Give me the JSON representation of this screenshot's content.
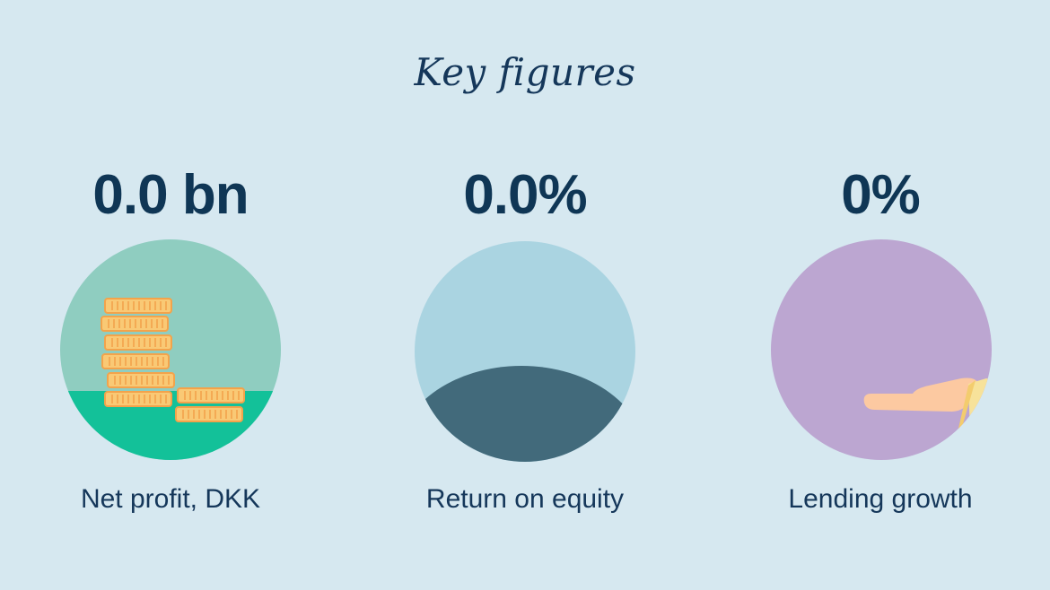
{
  "title": "Key figures",
  "figures": [
    {
      "value": "0.0 bn",
      "label": "Net profit, DKK",
      "icon": "coins-icon"
    },
    {
      "value": "0.0%",
      "label": "Return on equity",
      "icon": "bowl-icon"
    },
    {
      "value": "0%",
      "label": "Lending growth",
      "icon": "hand-icon"
    }
  ],
  "colors": {
    "background": "#d6e8f0",
    "text": "#0f3655",
    "coin_circle_top": "#8fcdc0",
    "coin_circle_bottom": "#13c199",
    "coin": "#f9c975",
    "equity_circle_top": "#aad4e1",
    "equity_circle_bottom": "#426a7b",
    "lending_circle": "#bca6d1",
    "hand": "#fcc9a1"
  }
}
